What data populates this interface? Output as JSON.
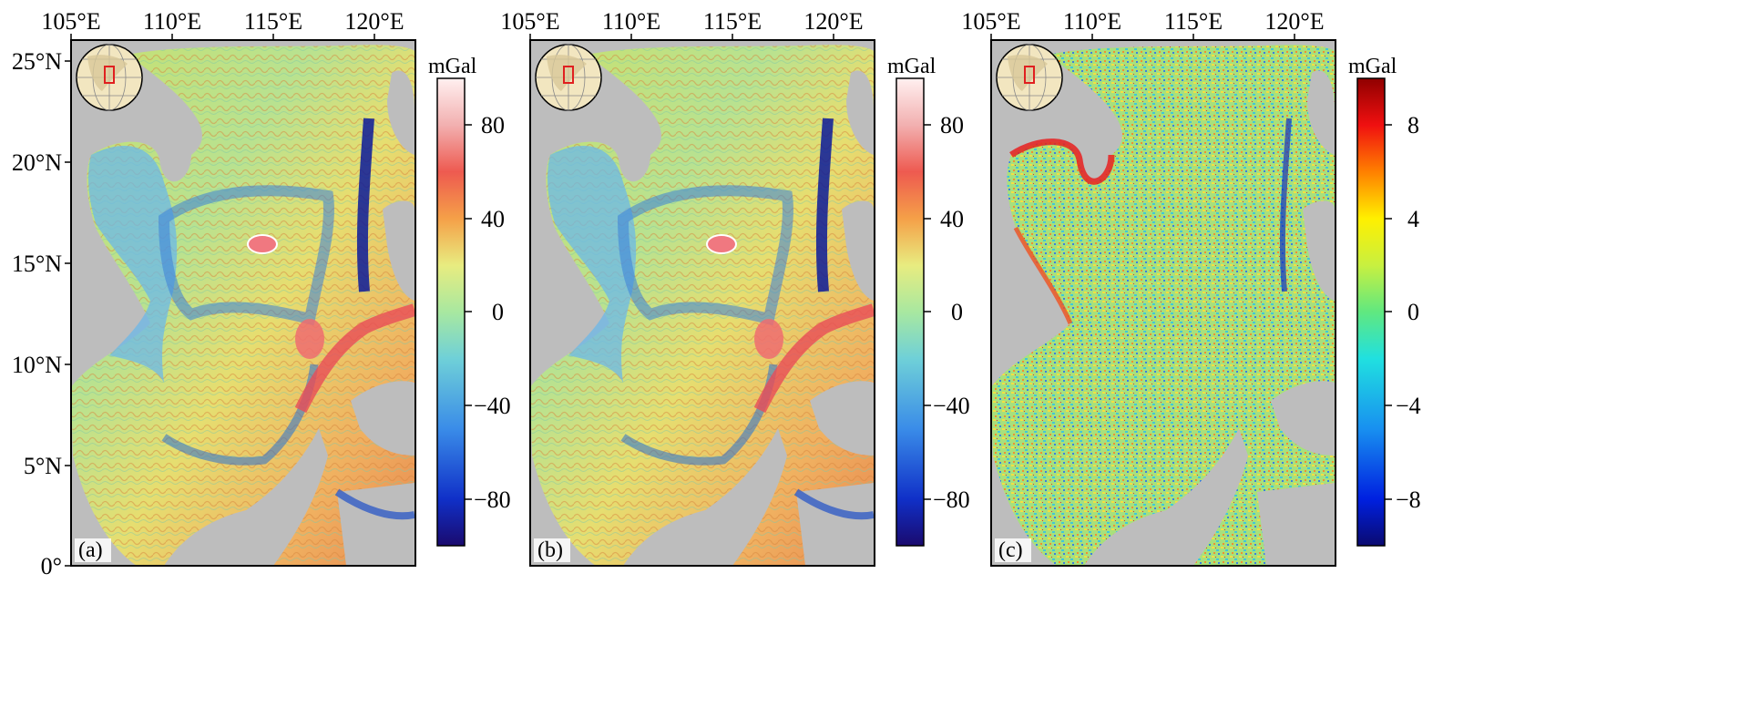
{
  "figure": {
    "panels": [
      {
        "id": "a",
        "label": "(a)",
        "colorbar": {
          "unit": "mGal",
          "ticks": [
            "80",
            "40",
            "0",
            "−40",
            "−80"
          ]
        }
      },
      {
        "id": "b",
        "label": "(b)",
        "colorbar": {
          "unit": "mGal",
          "ticks": [
            "80",
            "40",
            "0",
            "−40",
            "−80"
          ]
        }
      },
      {
        "id": "c",
        "label": "(c)",
        "colorbar": {
          "unit": "mGal",
          "ticks": [
            "8",
            "4",
            "0",
            "−4",
            "−8"
          ]
        }
      }
    ],
    "lon_ticks": [
      "105°E",
      "110°E",
      "115°E",
      "120°E"
    ],
    "lat_ticks": [
      "25°N",
      "20°N",
      "15°N",
      "10°N",
      "5°N",
      "0°"
    ],
    "colors": {
      "land": "#bdbdbd",
      "frame": "#000000",
      "inset_box": "#e02020"
    },
    "icons": [
      "globe-inset-icon"
    ]
  },
  "map_extent": {
    "lon": [
      105,
      122
    ],
    "lat": [
      0,
      26
    ]
  },
  "colorbar_range": {
    "a": [
      -100,
      100
    ],
    "b": [
      -100,
      100
    ],
    "c": [
      -10,
      10
    ]
  }
}
